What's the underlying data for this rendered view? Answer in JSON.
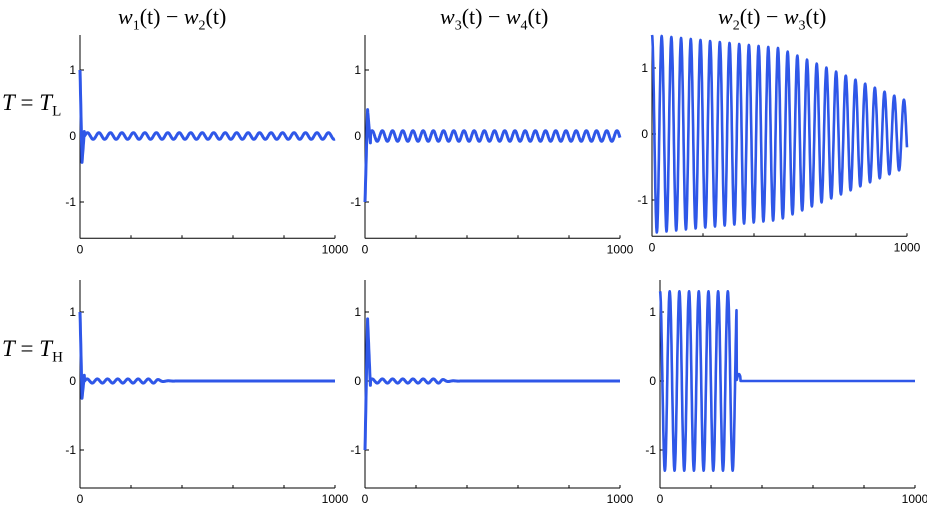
{
  "column_titles": [
    {
      "a": "w",
      "a_sub": "1",
      "mid": "(t) − ",
      "b": "w",
      "b_sub": "2",
      "end": "(t)"
    },
    {
      "a": "w",
      "a_sub": "3",
      "mid": "(t) − ",
      "b": "w",
      "b_sub": "4",
      "end": "(t)"
    },
    {
      "a": "w",
      "a_sub": "2",
      "mid": "(t) − ",
      "b": "w",
      "b_sub": "3",
      "end": "(t)"
    }
  ],
  "row_labels": [
    {
      "lhs": "T",
      "eq": " = ",
      "rhs": "T",
      "sub": "L"
    },
    {
      "lhs": "T",
      "eq": " = ",
      "rhs": "T",
      "sub": "H"
    }
  ],
  "colors": {
    "line": "#2f57e8",
    "axis": "#000000"
  },
  "chart_data": [
    {
      "type": "line",
      "row": "T = TL",
      "panel": "w1(t) − w2(t)",
      "xlim": [
        0,
        1000
      ],
      "ylim": [
        -1.5,
        1.5
      ],
      "xticks": [
        "0",
        "1000"
      ],
      "yticks": [
        "1",
        "0",
        "-1"
      ],
      "grid": false,
      "signal": {
        "kind": "decay",
        "start": 1.0,
        "first_min": -0.4,
        "tail_amp": 0.05,
        "period": 45
      }
    },
    {
      "type": "line",
      "row": "T = TL",
      "panel": "w3(t) − w4(t)",
      "xlim": [
        0,
        1000
      ],
      "ylim": [
        -1.5,
        1.5
      ],
      "xticks": [
        "0",
        "1000"
      ],
      "yticks": [
        "1",
        "0",
        "-1"
      ],
      "grid": false,
      "signal": {
        "kind": "decay",
        "start": -1.0,
        "first_max": 0.4,
        "tail_amp": 0.08,
        "period": 40
      }
    },
    {
      "type": "line",
      "row": "T = TL",
      "panel": "w2(t) − w3(t)",
      "xlim": [
        0,
        1000
      ],
      "ylim": [
        -1.5,
        1.5
      ],
      "xticks": [
        "0",
        "1000"
      ],
      "yticks": [
        "1",
        "0",
        "-1"
      ],
      "grid": false,
      "signal": {
        "kind": "sustained",
        "amp_start": 1.5,
        "amp_mid": 1.3,
        "amp_end": 0.5,
        "period": 38
      }
    },
    {
      "type": "line",
      "row": "T = TH",
      "panel": "w1(t) − w2(t)",
      "xlim": [
        0,
        1000
      ],
      "ylim": [
        -1.5,
        1.5
      ],
      "xticks": [
        "0",
        "1000"
      ],
      "yticks": [
        "1",
        "0",
        "-1"
      ],
      "grid": false,
      "signal": {
        "kind": "decay",
        "start": 1.0,
        "first_min": -0.25,
        "tail_amp": 0.03,
        "period": 40,
        "settle_at": 300
      }
    },
    {
      "type": "line",
      "row": "T = TH",
      "panel": "w3(t) − w4(t)",
      "xlim": [
        0,
        1000
      ],
      "ylim": [
        -1.5,
        1.5
      ],
      "xticks": [
        "0",
        "1000"
      ],
      "yticks": [
        "1",
        "0",
        "-1"
      ],
      "grid": false,
      "signal": {
        "kind": "decay",
        "start": -1.0,
        "first_max": 0.9,
        "tail_amp": 0.03,
        "period": 40,
        "settle_at": 300
      }
    },
    {
      "type": "line",
      "row": "T = TH",
      "panel": "w2(t) − w3(t)",
      "xlim": [
        0,
        1000
      ],
      "ylim": [
        -1.5,
        1.5
      ],
      "xticks": [
        "0",
        "1000"
      ],
      "yticks": [
        "1",
        "0",
        "-1"
      ],
      "grid": false,
      "signal": {
        "kind": "burst",
        "amp": 1.3,
        "period": 38,
        "end": 300
      }
    }
  ]
}
